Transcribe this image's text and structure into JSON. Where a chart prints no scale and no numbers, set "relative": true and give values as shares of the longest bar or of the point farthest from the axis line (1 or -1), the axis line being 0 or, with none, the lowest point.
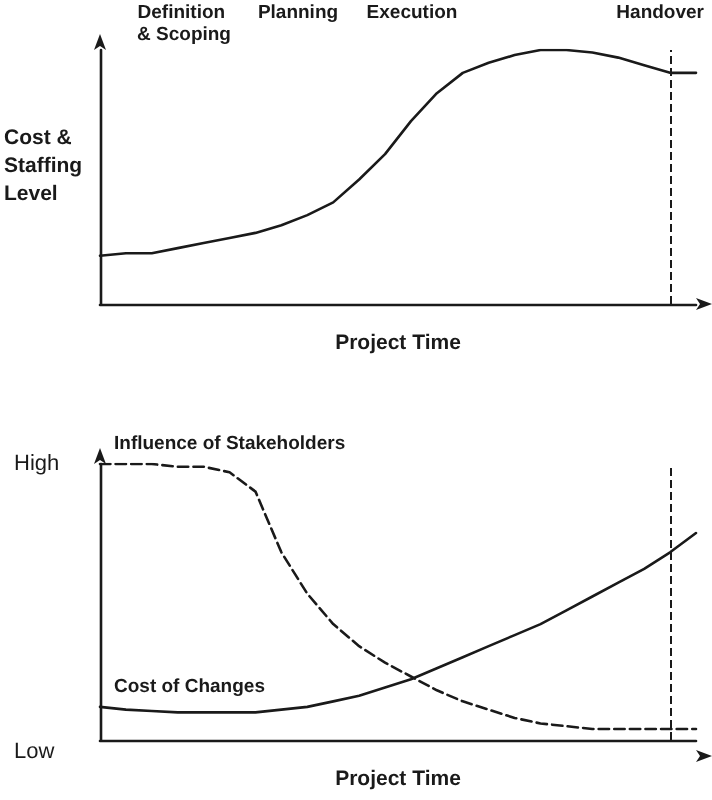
{
  "chart_data": [
    {
      "type": "line",
      "relative": true,
      "xlabel": "Project Time",
      "ylabel": "Cost & Staffing Level",
      "annotations": [
        "Definition & Scoping",
        "Planning",
        "Execution",
        "Handover"
      ],
      "categories": [
        null,
        null,
        null,
        null,
        null,
        null,
        null,
        null,
        null,
        null,
        null,
        null,
        null,
        null,
        null,
        null,
        null,
        null,
        null,
        null,
        null,
        null,
        null,
        null
      ],
      "series": [
        {
          "color": "#1a1a1a",
          "line_style": "solid",
          "values": [
            0.19,
            0.2,
            0.2,
            0.22,
            0.24,
            0.26,
            0.28,
            0.31,
            0.35,
            0.4,
            0.49,
            0.59,
            0.72,
            0.83,
            0.91,
            0.95,
            0.98,
            1,
            1,
            0.99,
            0.97,
            0.94,
            0.91,
            0.91
          ]
        }
      ]
    },
    {
      "type": "line",
      "relative": true,
      "xlabel": "Project Time",
      "annotations": [
        "High",
        "Low"
      ],
      "categories": [
        null,
        null,
        null,
        null,
        null,
        null,
        null,
        null,
        null,
        null,
        null,
        null,
        null,
        null,
        null,
        null,
        null,
        null,
        null,
        null,
        null,
        null,
        null,
        null
      ],
      "series": [
        {
          "name": "Influence of Stakeholders",
          "color": "#1a1a1a",
          "line_style": "dashed",
          "values": [
            1,
            1,
            1,
            0.99,
            0.99,
            0.97,
            0.9,
            0.68,
            0.53,
            0.42,
            0.34,
            0.28,
            0.23,
            0.18,
            0.14,
            0.11,
            0.08,
            0.06,
            0.05,
            0.04,
            0.04,
            0.04,
            0.04,
            0.04
          ]
        },
        {
          "name": "Cost of Changes",
          "color": "#1a1a1a",
          "line_style": "solid",
          "values": [
            0.12,
            0.11,
            0.105,
            0.1,
            0.1,
            0.1,
            0.1,
            0.11,
            0.12,
            0.14,
            0.16,
            0.19,
            0.22,
            0.26,
            0.3,
            0.34,
            0.38,
            0.42,
            0.47,
            0.52,
            0.57,
            0.62,
            0.68,
            0.75
          ]
        }
      ]
    }
  ]
}
